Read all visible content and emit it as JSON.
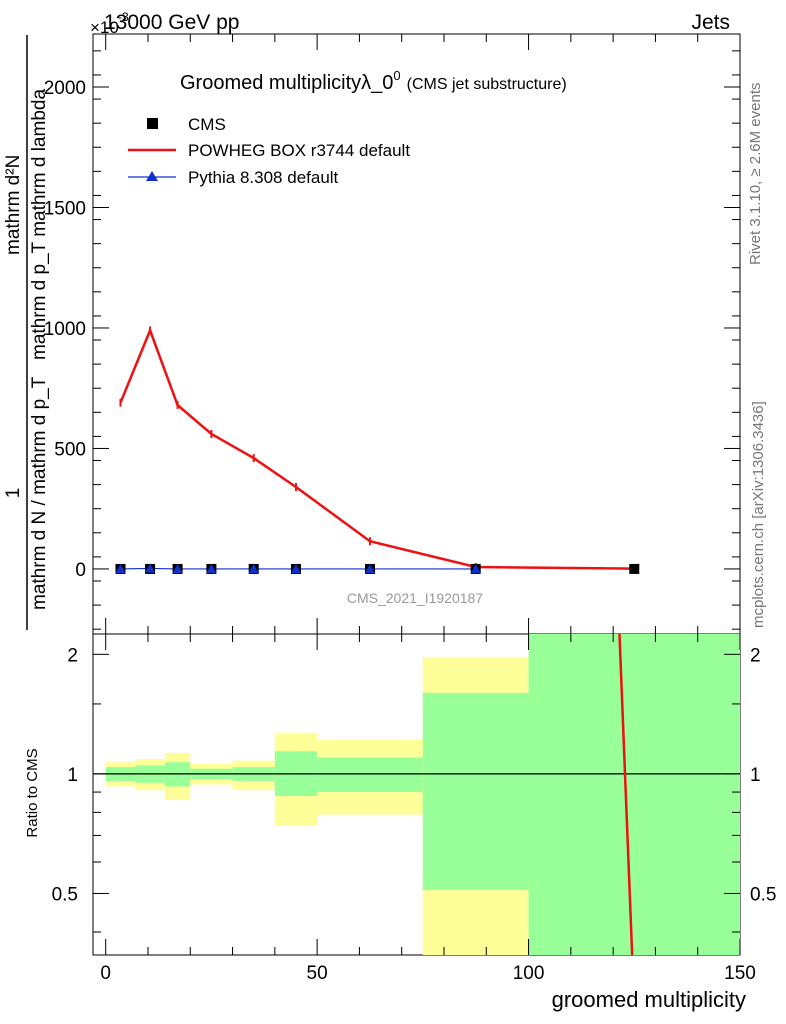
{
  "header": {
    "left": "13000 GeV pp",
    "right": "Jets"
  },
  "side_labels": {
    "rivet": "Rivet 3.1.10, ≥ 2.6M events",
    "mcplots": "mcplots.cern.ch [arXiv:1306.3436]"
  },
  "chart_data": {
    "type": "line",
    "title_main": "Groomed multiplicityλ_0",
    "title_sup": "0",
    "title_sub": "(CMS jet substructure)",
    "watermark": "CMS_2021_I1920187",
    "ylabel_top": "mathrm d²N",
    "ylabel_top_sup": "2",
    "ylabel_denom": "mathrm d p_T mathrm d lambda",
    "ylabel_one": "1",
    "ylabel_norm": "mathrm d N / mathrm d p_T",
    "exponent_label": "×10",
    "exponent_sup": "-3",
    "xlabel": "groomed multiplicity",
    "ratio_ylabel": "Ratio to CMS",
    "xlim": [
      -3,
      150
    ],
    "ylim": [
      -0.00027,
      0.00222
    ],
    "ratio_ylim": [
      0.35,
      2.25
    ],
    "x_ticks": [
      "0",
      "50",
      "100",
      "150"
    ],
    "y_ticks": [
      "0",
      "500",
      "1000",
      "1500",
      "2000"
    ],
    "ratio_ticks": [
      "0.5",
      "1",
      "2"
    ],
    "legend": [
      {
        "name": "CMS",
        "marker": "square",
        "color": "#000000"
      },
      {
        "name": "POWHEG BOX r3744 default",
        "marker": "line",
        "color": "#ee1111"
      },
      {
        "name": "Pythia 8.308 default",
        "marker": "triangle",
        "color": "#1030cc"
      }
    ],
    "bins": [
      {
        "lo": 0,
        "hi": 7,
        "x": 3.5
      },
      {
        "lo": 7,
        "hi": 14,
        "x": 10.5
      },
      {
        "lo": 14,
        "hi": 20,
        "x": 17
      },
      {
        "lo": 20,
        "hi": 30,
        "x": 25
      },
      {
        "lo": 30,
        "hi": 40,
        "x": 35
      },
      {
        "lo": 40,
        "hi": 50,
        "x": 45
      },
      {
        "lo": 50,
        "hi": 75,
        "x": 62.5
      },
      {
        "lo": 75,
        "hi": 100,
        "x": 87.5
      },
      {
        "lo": 100,
        "hi": 150,
        "x": 125
      }
    ],
    "series": [
      {
        "name": "CMS",
        "values": [
          0.0,
          0.0,
          0.0,
          0.0,
          0.0,
          0.0,
          0.0,
          0.0,
          0.0
        ]
      },
      {
        "name": "POWHEG BOX r3744 default",
        "values": [
          0.00069,
          0.00099,
          0.00068,
          0.00056,
          0.00046,
          0.00034,
          0.000115,
          8e-06,
          1.5e-06
        ]
      },
      {
        "name": "Pythia 8.308 default",
        "values": [
          0.0,
          2e-06,
          0.0,
          0.0,
          0.0,
          0.0,
          0.0,
          0.0,
          0.0
        ]
      }
    ],
    "ratio_bands": [
      {
        "lo": 0,
        "hi": 7,
        "yellow": [
          0.93,
          1.07
        ],
        "green": [
          0.96,
          1.04
        ]
      },
      {
        "lo": 7,
        "hi": 14,
        "yellow": [
          0.91,
          1.09
        ],
        "green": [
          0.95,
          1.05
        ]
      },
      {
        "lo": 14,
        "hi": 20,
        "yellow": [
          0.86,
          1.13
        ],
        "green": [
          0.93,
          1.07
        ]
      },
      {
        "lo": 20,
        "hi": 30,
        "yellow": [
          0.94,
          1.06
        ],
        "green": [
          0.97,
          1.03
        ]
      },
      {
        "lo": 30,
        "hi": 40,
        "yellow": [
          0.91,
          1.08
        ],
        "green": [
          0.96,
          1.04
        ]
      },
      {
        "lo": 40,
        "hi": 50,
        "yellow": [
          0.74,
          1.27
        ],
        "green": [
          0.88,
          1.14
        ]
      },
      {
        "lo": 50,
        "hi": 75,
        "yellow": [
          0.79,
          1.22
        ],
        "green": [
          0.9,
          1.1
        ]
      },
      {
        "lo": 75,
        "hi": 100,
        "yellow": [
          0.0,
          1.97
        ],
        "green": [
          0.51,
          1.6
        ]
      },
      {
        "lo": 100,
        "hi": 150,
        "yellow": [
          0.0,
          3.0
        ],
        "green": [
          0.0,
          3.0
        ]
      }
    ],
    "ratio_line": {
      "name": "POWHEG BOX r3744 default",
      "points": [
        [
          121.5,
          2.25
        ],
        [
          124.5,
          0.35
        ]
      ]
    }
  }
}
